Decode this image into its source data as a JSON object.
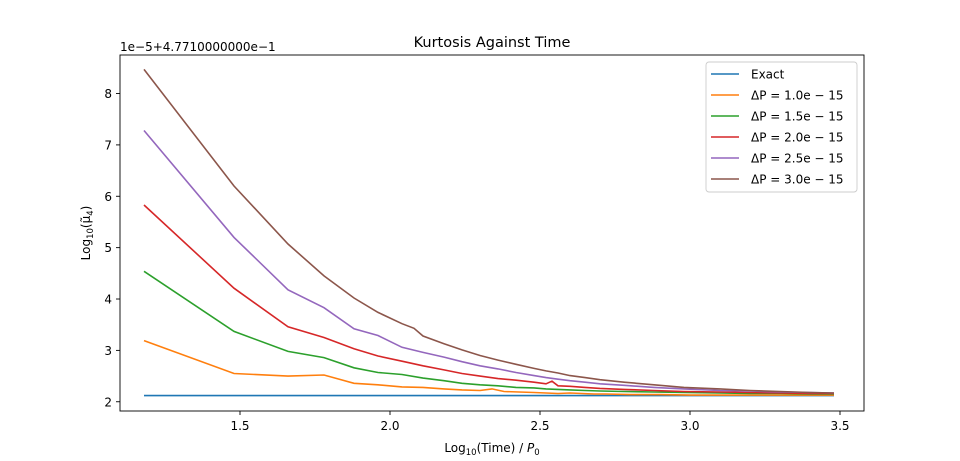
{
  "chart_data": {
    "type": "line",
    "title": "Kurtosis Against Time",
    "xlabel_main": "Log",
    "xlabel_sub": "10",
    "xlabel_rest": "(Time) / ",
    "xlabel_p": "P",
    "xlabel_p_sub": "0",
    "ylabel_main": "Log",
    "ylabel_sub": "10",
    "ylabel_rest": "(μ̃",
    "ylabel_rest_sub": "4",
    "ylabel_close": ")",
    "offset_text": "1e−5+4.7710000000e−1",
    "xlim": [
      1.1,
      3.58
    ],
    "ylim": [
      1.82,
      8.75
    ],
    "xticks": [
      1.5,
      2.0,
      2.5,
      3.0,
      3.5
    ],
    "xtick_labels": [
      "1.5",
      "2.0",
      "2.5",
      "3.0",
      "3.5"
    ],
    "yticks": [
      2,
      3,
      4,
      5,
      6,
      7,
      8
    ],
    "ytick_labels": [
      "2",
      "3",
      "4",
      "5",
      "6",
      "7",
      "8"
    ],
    "grid": false,
    "legend_position": "top-right",
    "series": [
      {
        "name": "Exact",
        "legend_main": "Exact",
        "color": "#1f77b4",
        "points": [
          [
            1.18,
            2.12
          ],
          [
            3.48,
            2.12
          ]
        ]
      },
      {
        "name": "ΔP = 1.0e−15",
        "legend_main": "ΔP = 1.0e − 15",
        "color": "#ff7f0e",
        "points": [
          [
            1.18,
            3.19
          ],
          [
            1.48,
            2.55
          ],
          [
            1.66,
            2.5
          ],
          [
            1.78,
            2.52
          ],
          [
            1.88,
            2.36
          ],
          [
            1.96,
            2.33
          ],
          [
            2.04,
            2.29
          ],
          [
            2.11,
            2.28
          ],
          [
            2.18,
            2.25
          ],
          [
            2.24,
            2.23
          ],
          [
            2.3,
            2.22
          ],
          [
            2.34,
            2.25
          ],
          [
            2.38,
            2.2
          ],
          [
            2.43,
            2.19
          ],
          [
            2.48,
            2.18
          ],
          [
            2.52,
            2.17
          ],
          [
            2.56,
            2.16
          ],
          [
            2.6,
            2.17
          ],
          [
            2.64,
            2.16
          ],
          [
            2.68,
            2.15
          ],
          [
            2.72,
            2.15
          ],
          [
            2.8,
            2.14
          ],
          [
            2.9,
            2.14
          ],
          [
            3.0,
            2.13
          ],
          [
            3.1,
            2.13
          ],
          [
            3.2,
            2.13
          ],
          [
            3.3,
            2.13
          ],
          [
            3.4,
            2.13
          ],
          [
            3.48,
            2.13
          ]
        ]
      },
      {
        "name": "ΔP = 1.5e−15",
        "legend_main": "ΔP = 1.5e − 15",
        "color": "#2ca02c",
        "points": [
          [
            1.18,
            4.54
          ],
          [
            1.48,
            3.37
          ],
          [
            1.66,
            2.98
          ],
          [
            1.78,
            2.86
          ],
          [
            1.88,
            2.66
          ],
          [
            1.96,
            2.57
          ],
          [
            2.04,
            2.53
          ],
          [
            2.11,
            2.46
          ],
          [
            2.18,
            2.41
          ],
          [
            2.24,
            2.36
          ],
          [
            2.3,
            2.33
          ],
          [
            2.36,
            2.31
          ],
          [
            2.42,
            2.28
          ],
          [
            2.48,
            2.27
          ],
          [
            2.52,
            2.25
          ],
          [
            2.56,
            2.24
          ],
          [
            2.6,
            2.23
          ],
          [
            2.65,
            2.22
          ],
          [
            2.7,
            2.21
          ],
          [
            2.78,
            2.2
          ],
          [
            2.88,
            2.19
          ],
          [
            2.98,
            2.18
          ],
          [
            3.1,
            2.17
          ],
          [
            3.2,
            2.16
          ],
          [
            3.3,
            2.16
          ],
          [
            3.4,
            2.15
          ],
          [
            3.48,
            2.15
          ]
        ]
      },
      {
        "name": "ΔP = 2.0e−15",
        "legend_main": "ΔP = 2.0e − 15",
        "color": "#d62728",
        "points": [
          [
            1.18,
            5.83
          ],
          [
            1.48,
            4.21
          ],
          [
            1.66,
            3.46
          ],
          [
            1.78,
            3.25
          ],
          [
            1.88,
            3.03
          ],
          [
            1.96,
            2.89
          ],
          [
            2.04,
            2.79
          ],
          [
            2.11,
            2.7
          ],
          [
            2.18,
            2.62
          ],
          [
            2.24,
            2.55
          ],
          [
            2.3,
            2.5
          ],
          [
            2.36,
            2.45
          ],
          [
            2.42,
            2.42
          ],
          [
            2.48,
            2.38
          ],
          [
            2.52,
            2.35
          ],
          [
            2.54,
            2.4
          ],
          [
            2.56,
            2.31
          ],
          [
            2.6,
            2.3
          ],
          [
            2.65,
            2.28
          ],
          [
            2.7,
            2.26
          ],
          [
            2.78,
            2.24
          ],
          [
            2.88,
            2.22
          ],
          [
            2.98,
            2.2
          ],
          [
            3.1,
            2.19
          ],
          [
            3.2,
            2.18
          ],
          [
            3.3,
            2.17
          ],
          [
            3.4,
            2.16
          ],
          [
            3.48,
            2.16
          ]
        ]
      },
      {
        "name": "ΔP = 2.5e−15",
        "legend_main": "ΔP = 2.5e − 15",
        "color": "#9467bd",
        "points": [
          [
            1.18,
            7.28
          ],
          [
            1.48,
            5.2
          ],
          [
            1.66,
            4.18
          ],
          [
            1.78,
            3.83
          ],
          [
            1.88,
            3.42
          ],
          [
            1.96,
            3.29
          ],
          [
            2.04,
            3.06
          ],
          [
            2.11,
            2.96
          ],
          [
            2.18,
            2.87
          ],
          [
            2.24,
            2.78
          ],
          [
            2.3,
            2.7
          ],
          [
            2.36,
            2.64
          ],
          [
            2.42,
            2.57
          ],
          [
            2.48,
            2.51
          ],
          [
            2.52,
            2.47
          ],
          [
            2.56,
            2.44
          ],
          [
            2.6,
            2.41
          ],
          [
            2.65,
            2.38
          ],
          [
            2.7,
            2.35
          ],
          [
            2.78,
            2.32
          ],
          [
            2.88,
            2.28
          ],
          [
            2.98,
            2.25
          ],
          [
            3.1,
            2.22
          ],
          [
            3.2,
            2.21
          ],
          [
            3.3,
            2.19
          ],
          [
            3.4,
            2.18
          ],
          [
            3.48,
            2.17
          ]
        ]
      },
      {
        "name": "ΔP = 3.0e−15",
        "legend_main": "ΔP = 3.0e − 15",
        "color": "#8c564b",
        "points": [
          [
            1.18,
            8.47
          ],
          [
            1.48,
            6.2
          ],
          [
            1.66,
            5.07
          ],
          [
            1.78,
            4.45
          ],
          [
            1.88,
            4.02
          ],
          [
            1.96,
            3.74
          ],
          [
            2.04,
            3.52
          ],
          [
            2.08,
            3.43
          ],
          [
            2.11,
            3.28
          ],
          [
            2.18,
            3.13
          ],
          [
            2.24,
            3.01
          ],
          [
            2.3,
            2.9
          ],
          [
            2.36,
            2.81
          ],
          [
            2.42,
            2.73
          ],
          [
            2.48,
            2.65
          ],
          [
            2.52,
            2.6
          ],
          [
            2.56,
            2.56
          ],
          [
            2.6,
            2.51
          ],
          [
            2.65,
            2.47
          ],
          [
            2.7,
            2.43
          ],
          [
            2.78,
            2.38
          ],
          [
            2.88,
            2.33
          ],
          [
            2.98,
            2.28
          ],
          [
            3.1,
            2.25
          ],
          [
            3.2,
            2.22
          ],
          [
            3.3,
            2.2
          ],
          [
            3.4,
            2.18
          ],
          [
            3.48,
            2.17
          ]
        ]
      }
    ]
  }
}
